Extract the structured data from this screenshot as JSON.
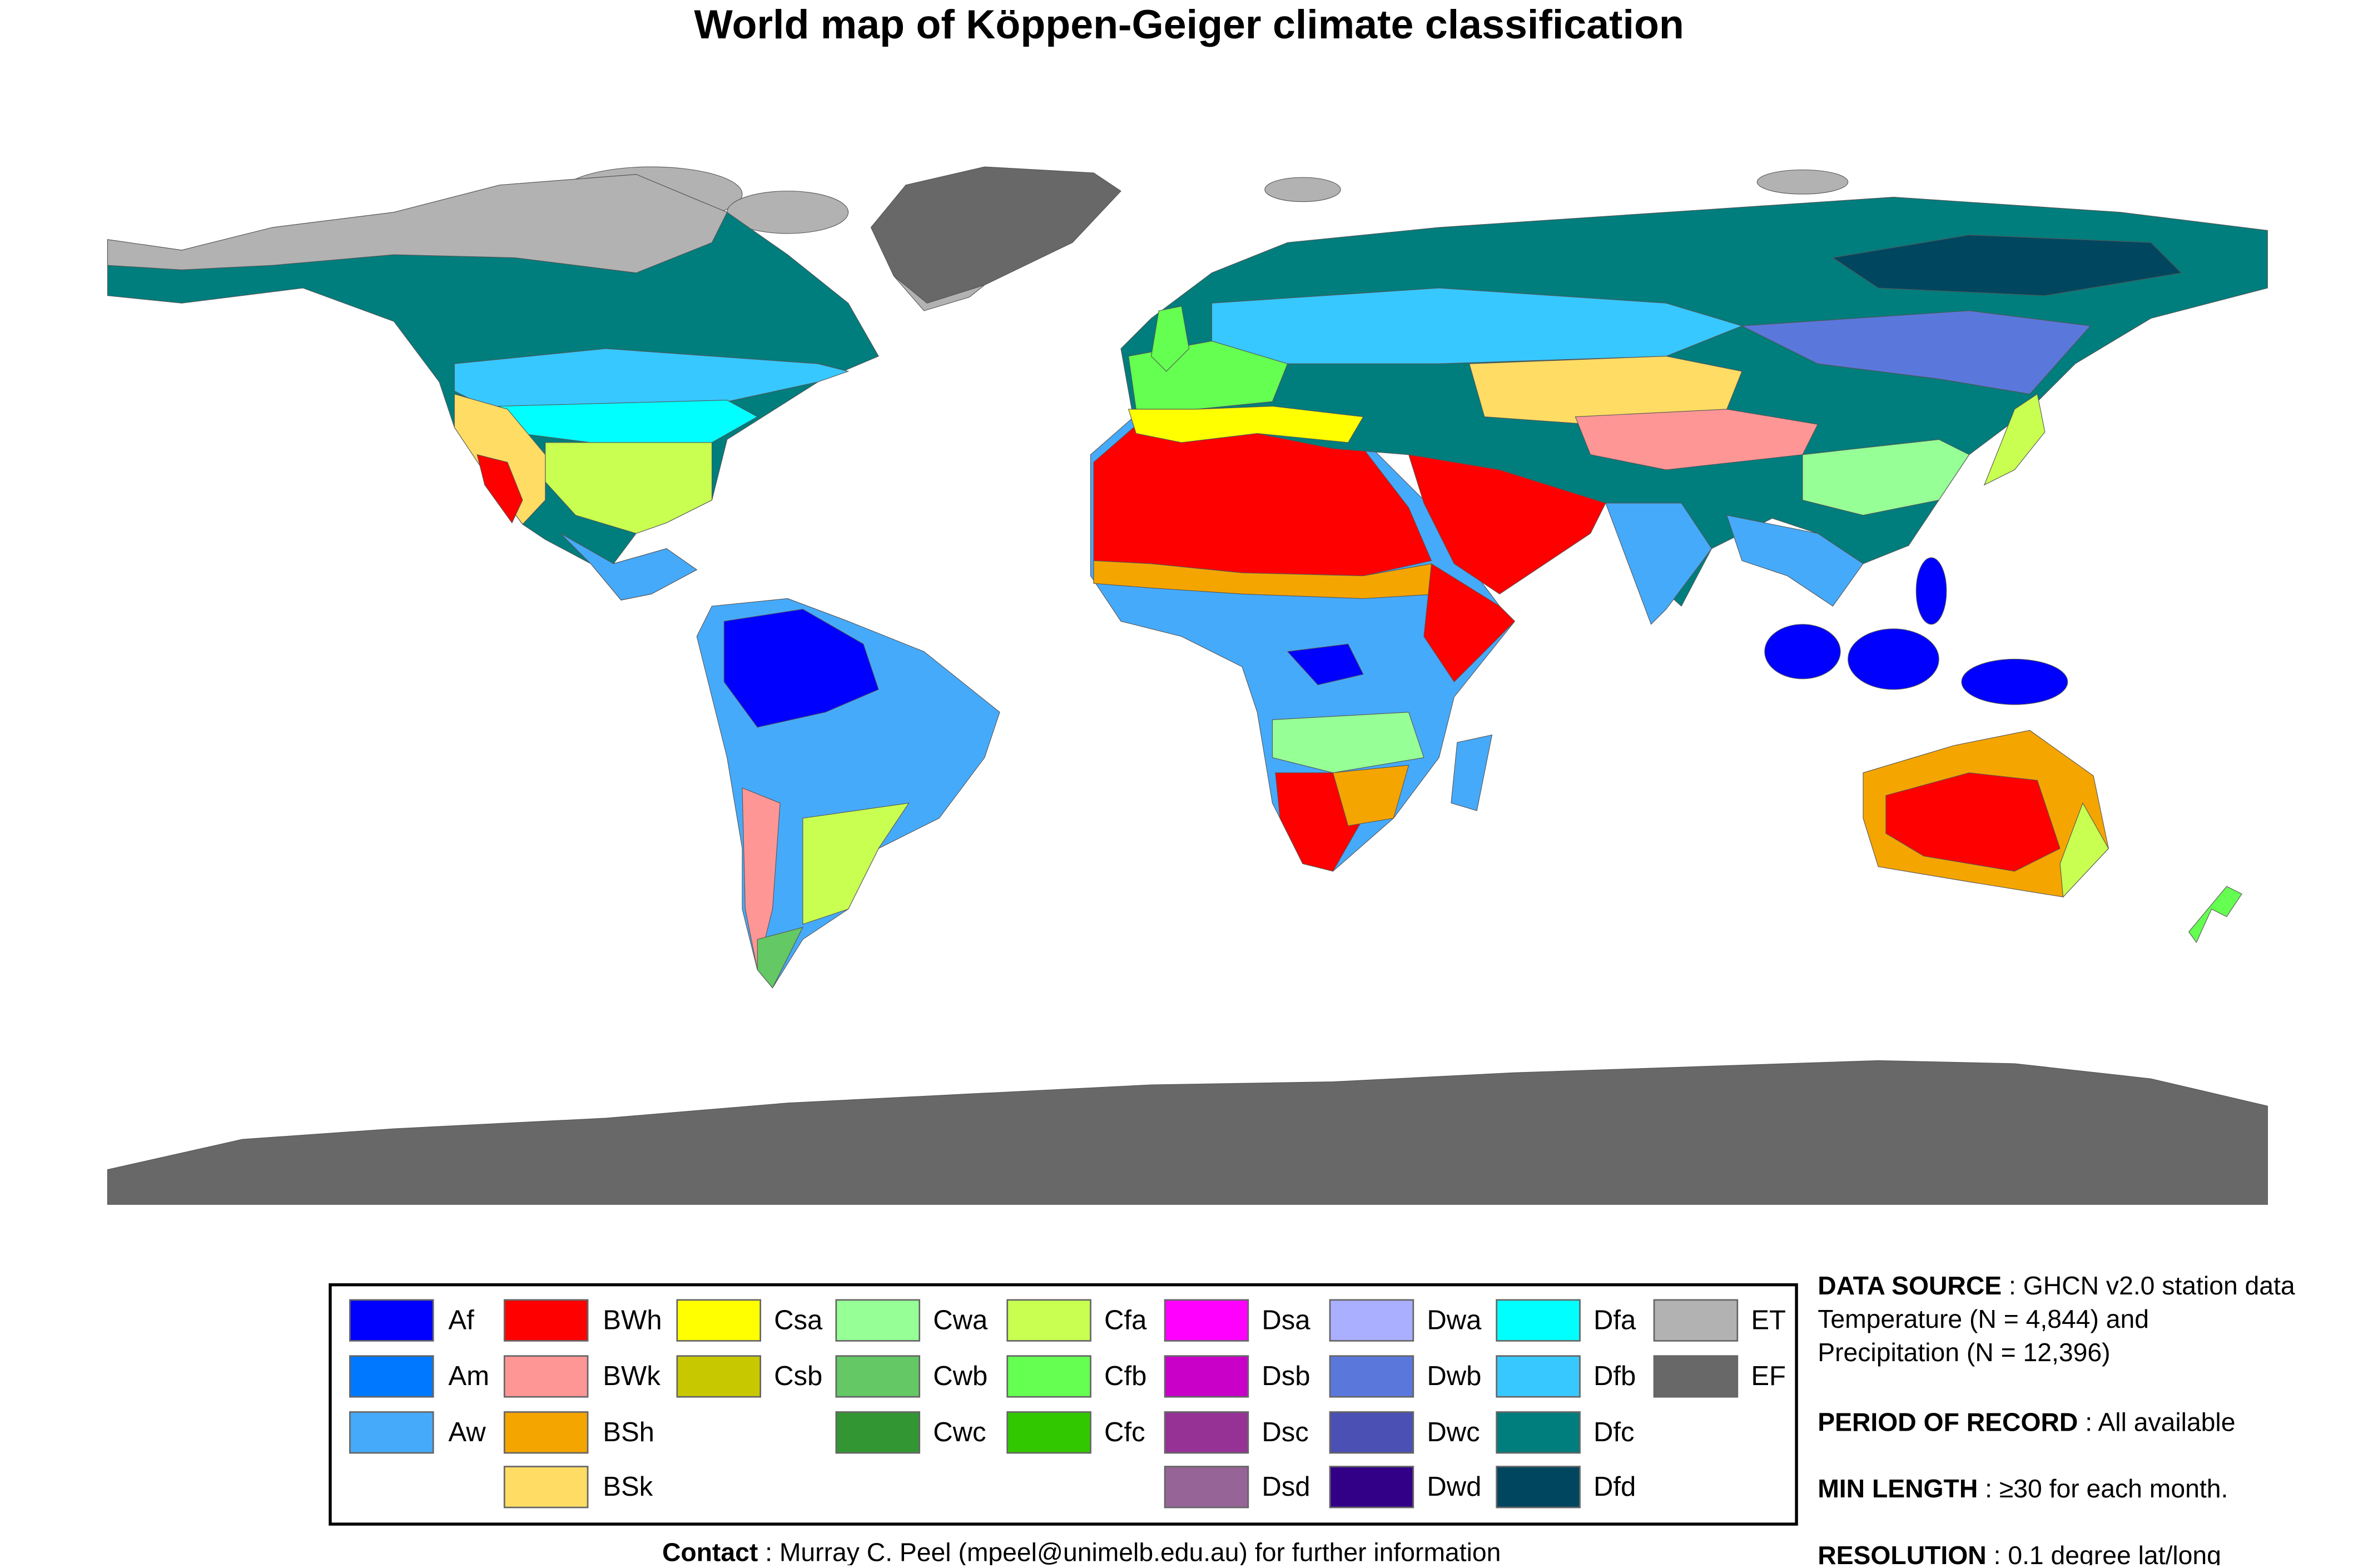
{
  "title": "World map of Köppen-Geiger climate classification",
  "legend": [
    [
      {
        "code": "Af",
        "color": "#0000fe"
      },
      {
        "code": "Am",
        "color": "#0078ff"
      },
      {
        "code": "Aw",
        "color": "#46aafa"
      }
    ],
    [
      {
        "code": "BWh",
        "color": "#ff0000"
      },
      {
        "code": "BWk",
        "color": "#ff9696"
      },
      {
        "code": "BSh",
        "color": "#f5a500"
      },
      {
        "code": "BSk",
        "color": "#ffdc64"
      }
    ],
    [
      {
        "code": "Csa",
        "color": "#ffff00"
      },
      {
        "code": "Csb",
        "color": "#c8c800"
      }
    ],
    [
      {
        "code": "Cwa",
        "color": "#96ff96"
      },
      {
        "code": "Cwb",
        "color": "#64c864"
      },
      {
        "code": "Cwc",
        "color": "#329632"
      }
    ],
    [
      {
        "code": "Cfa",
        "color": "#c8ff50"
      },
      {
        "code": "Cfb",
        "color": "#64ff50"
      },
      {
        "code": "Cfc",
        "color": "#32c800"
      }
    ],
    [
      {
        "code": "Dsa",
        "color": "#ff00ff"
      },
      {
        "code": "Dsb",
        "color": "#c800c8"
      },
      {
        "code": "Dsc",
        "color": "#963296"
      },
      {
        "code": "Dsd",
        "color": "#966496"
      }
    ],
    [
      {
        "code": "Dwa",
        "color": "#aaafff"
      },
      {
        "code": "Dwb",
        "color": "#5a78dc"
      },
      {
        "code": "Dwc",
        "color": "#4b50b4"
      },
      {
        "code": "Dwd",
        "color": "#320087"
      }
    ],
    [
      {
        "code": "Dfa",
        "color": "#00ffff"
      },
      {
        "code": "Dfb",
        "color": "#37c8ff"
      },
      {
        "code": "Dfc",
        "color": "#007d7d"
      },
      {
        "code": "Dfd",
        "color": "#00465f"
      }
    ],
    [
      {
        "code": "ET",
        "color": "#b2b2b2"
      },
      {
        "code": "EF",
        "color": "#686868"
      }
    ]
  ],
  "notes": [
    {
      "label": "DATA SOURCE",
      "text": " : GHCN v2.0 station data"
    },
    {
      "text": "Temperature (N = 4,844) and"
    },
    {
      "text": "Precipitation (N = 12,396)"
    },
    {
      "label": "PERIOD OF RECORD",
      "text": " : All available"
    },
    {
      "label": "MIN LENGTH",
      "text": " : ≥30 for each month."
    },
    {
      "label": "RESOLUTION",
      "text": " : 0.1 degree lat/long"
    }
  ],
  "contact": {
    "label": "Contact",
    "text": " : Murray C. Peel (mpeel@unimelb.edu.au) for further information"
  }
}
